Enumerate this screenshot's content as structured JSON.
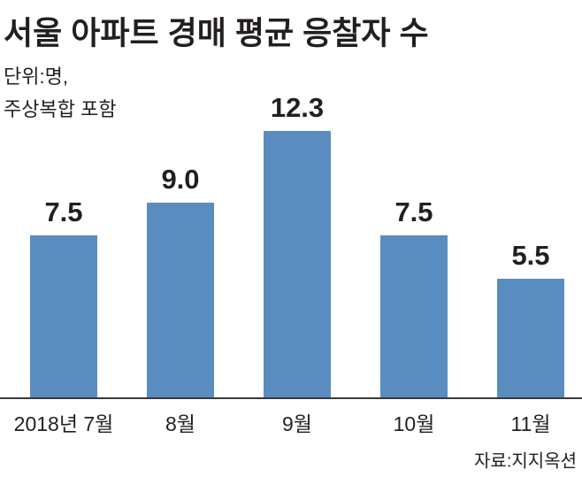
{
  "chart_data": {
    "type": "bar",
    "title": "서울 아파트 경매 평균 응찰자 수",
    "note_lines": [
      "단위:명,",
      "주상복합 포함"
    ],
    "categories": [
      "2018년 7월",
      "8월",
      "9월",
      "10월",
      "11월"
    ],
    "values": [
      7.5,
      9.0,
      12.3,
      7.5,
      5.5
    ],
    "value_labels": [
      "7.5",
      "9.0",
      "12.3",
      "7.5",
      "5.5"
    ],
    "color": "#5a8dbf",
    "source": "자료:지지옥션"
  }
}
